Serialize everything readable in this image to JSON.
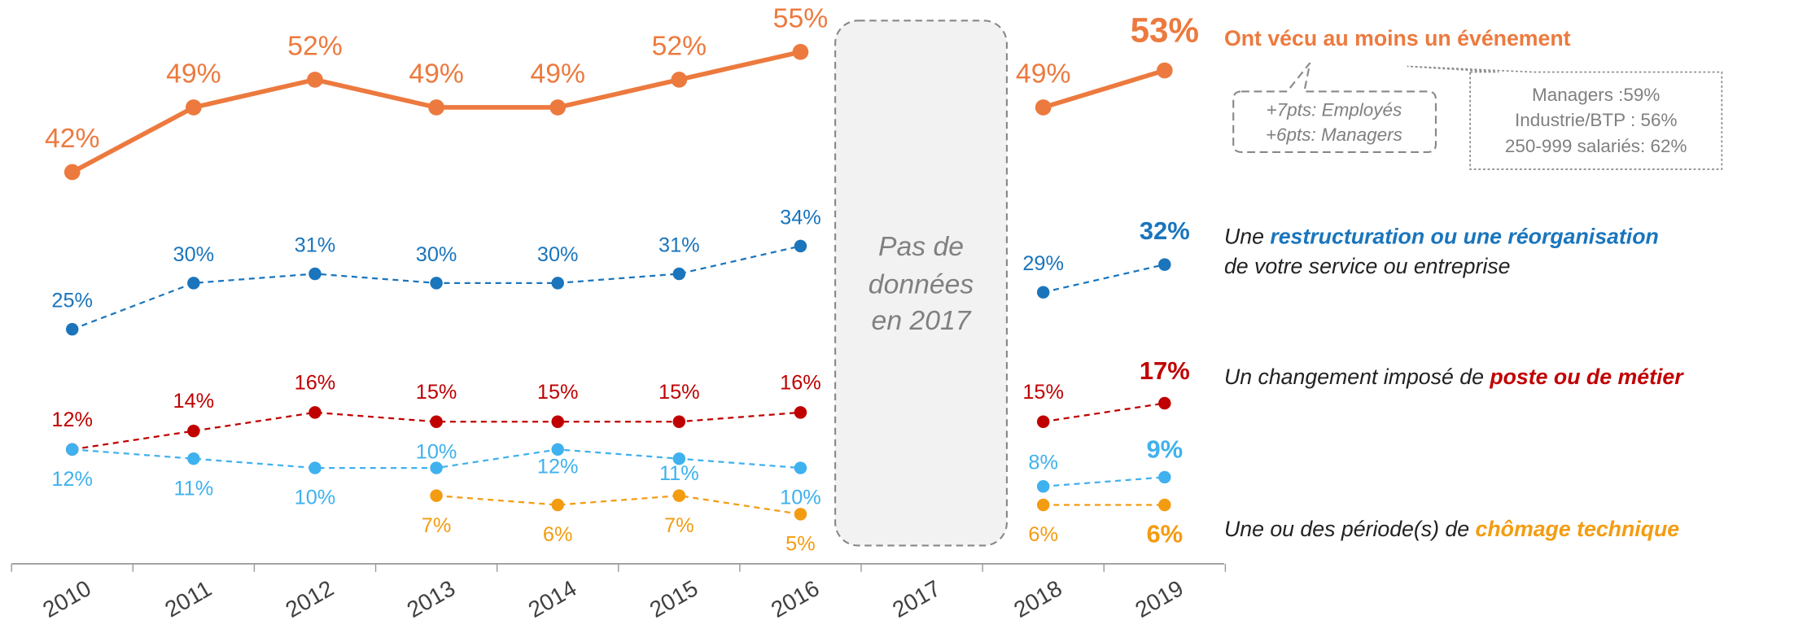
{
  "chart_data": {
    "type": "line",
    "categories": [
      "2010",
      "2011",
      "2012",
      "2013",
      "2014",
      "2015",
      "2016",
      "2017",
      "2018",
      "2019"
    ],
    "ylim": [
      0,
      60
    ],
    "series": [
      {
        "name": [
          [
            {
              "text": "Ont vécu au moins un événement",
              "emph": true
            }
          ]
        ],
        "color": "#ec7a3e",
        "style": "solid",
        "values": [
          42,
          49,
          52,
          49,
          49,
          52,
          55,
          null,
          49,
          53
        ],
        "value_labels": [
          "42%",
          "49%",
          "52%",
          "49%",
          "49%",
          "52%",
          "55%",
          null,
          "49%",
          "53%"
        ]
      },
      {
        "name": [
          [
            {
              "text": "Une ",
              "emph": false
            },
            {
              "text": "restructuration ou une réorganisation",
              "emph": true
            }
          ],
          [
            {
              "text": "de votre service ou entreprise",
              "emph": false
            }
          ]
        ],
        "color": "#1a75bc",
        "style": "dashed",
        "values": [
          25,
          30,
          31,
          30,
          30,
          31,
          34,
          null,
          29,
          32
        ],
        "value_labels": [
          "25%",
          "30%",
          "31%",
          "30%",
          "30%",
          "31%",
          "34%",
          null,
          "29%",
          "32%"
        ]
      },
      {
        "name": [
          [
            {
              "text": "Un changement imposé de ",
              "emph": false
            },
            {
              "text": "poste ou de métier",
              "emph": true
            }
          ]
        ],
        "color": "#c00000",
        "style": "dashed",
        "values": [
          12,
          14,
          16,
          15,
          15,
          15,
          16,
          null,
          15,
          17
        ],
        "value_labels": [
          "12%",
          "14%",
          "16%",
          "15%",
          "15%",
          "15%",
          "16%",
          null,
          "15%",
          "17%"
        ]
      },
      {
        "color": "#3fb1ee",
        "style": "dashed",
        "values": [
          12,
          11,
          10,
          10,
          12,
          11,
          10,
          null,
          8,
          9
        ],
        "value_labels": [
          "12%",
          "11%",
          "10%",
          "10%",
          "12%",
          "11%",
          "10%",
          null,
          "8%",
          "9%"
        ]
      },
      {
        "name": [
          [
            {
              "text": "Une ou des période(s) de ",
              "emph": false
            },
            {
              "text": "chômage technique",
              "emph": true
            }
          ]
        ],
        "color": "#f39c12",
        "style": "dashed",
        "values": [
          null,
          null,
          null,
          7,
          6,
          7,
          5,
          null,
          6,
          6
        ],
        "value_labels": [
          null,
          null,
          null,
          "7%",
          "6%",
          "7%",
          "5%",
          null,
          "6%",
          "6%"
        ]
      }
    ],
    "annotations": {
      "no_data": [
        "Pas de",
        "données",
        "en 2017"
      ],
      "callout_left": [
        "+7pts: Employés",
        "+6pts: Managers"
      ],
      "callout_right": [
        "Managers :59%",
        "Industrie/BTP : 56%",
        "250-999 salariés: 62%"
      ]
    }
  }
}
